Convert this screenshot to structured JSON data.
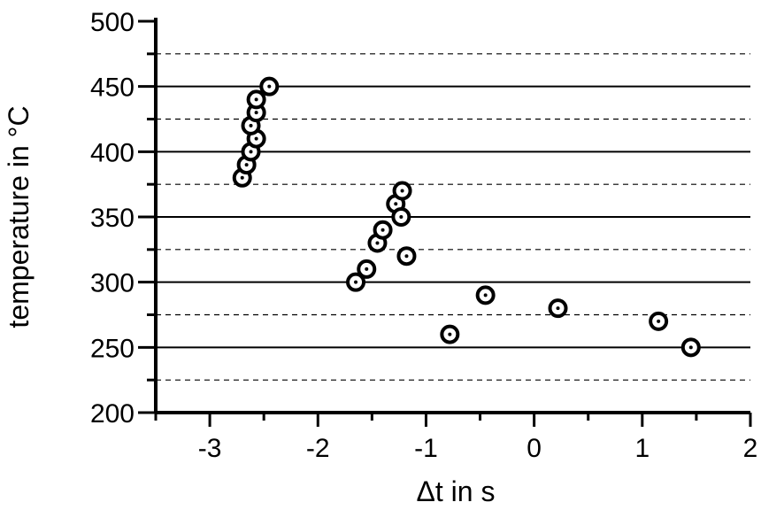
{
  "chart_data": {
    "type": "scatter",
    "title": "",
    "xlabel": "Δt in s",
    "ylabel": "temperature in °C",
    "xlim": [
      -3.5,
      2.0
    ],
    "ylim": [
      200,
      500
    ],
    "x_ticks": [
      -3,
      -2,
      -1,
      0,
      1,
      2
    ],
    "x_tick_labels": [
      "-3",
      "-2",
      "-1",
      "0",
      "1",
      "2"
    ],
    "y_ticks": [
      200,
      250,
      300,
      350,
      400,
      450,
      500
    ],
    "y_tick_labels": [
      "200",
      "250",
      "300",
      "350",
      "400",
      "450",
      "500"
    ],
    "grid_major_solid": [
      250,
      300,
      350,
      400,
      450
    ],
    "grid_minor_dashed": [
      225,
      275,
      325,
      375,
      425,
      475
    ],
    "series": [
      {
        "points": [
          {
            "x": -2.7,
            "y": 380
          },
          {
            "x": -2.66,
            "y": 390
          },
          {
            "x": -2.62,
            "y": 400
          },
          {
            "x": -2.57,
            "y": 410
          },
          {
            "x": -2.62,
            "y": 420
          },
          {
            "x": -2.57,
            "y": 430
          },
          {
            "x": -2.57,
            "y": 440
          },
          {
            "x": -2.45,
            "y": 450
          },
          {
            "x": -1.65,
            "y": 300
          },
          {
            "x": -1.55,
            "y": 310
          },
          {
            "x": -1.45,
            "y": 330
          },
          {
            "x": -1.4,
            "y": 340
          },
          {
            "x": -1.28,
            "y": 360
          },
          {
            "x": -1.22,
            "y": 370
          },
          {
            "x": -1.23,
            "y": 350
          },
          {
            "x": -1.18,
            "y": 320
          },
          {
            "x": -0.78,
            "y": 260
          },
          {
            "x": -0.45,
            "y": 290
          },
          {
            "x": 0.22,
            "y": 280
          },
          {
            "x": 1.15,
            "y": 270
          },
          {
            "x": 1.45,
            "y": 250
          }
        ]
      }
    ]
  }
}
